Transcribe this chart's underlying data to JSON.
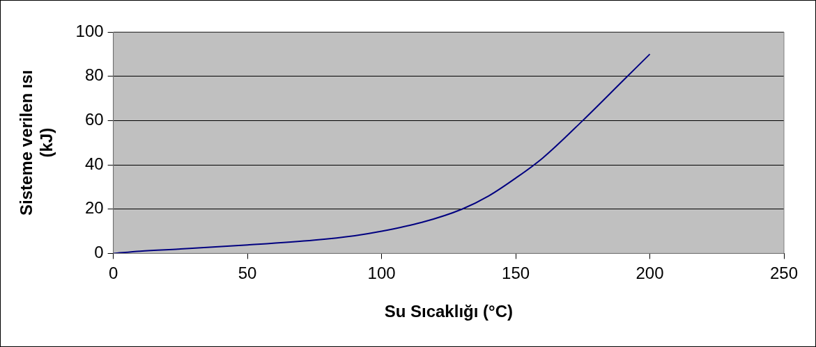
{
  "chart_data": {
    "type": "line",
    "xlabel": "Su Sıcaklığı (°C)",
    "ylabel": "Sisteme verilen ısı (kJ)",
    "series": [
      {
        "color": "#000080",
        "x": [
          0,
          10,
          25,
          50,
          75,
          90,
          100,
          115,
          130,
          140,
          150,
          160,
          175,
          190,
          200
        ],
        "values": [
          0,
          1,
          2,
          3.8,
          6,
          8,
          10,
          14,
          20,
          26,
          34,
          43,
          60,
          78,
          90
        ]
      }
    ],
    "xlim": [
      0,
      250
    ],
    "xticks": [
      0,
      50,
      100,
      150,
      200,
      250
    ],
    "ylim": [
      0,
      100
    ],
    "yticks": [
      0,
      20,
      40,
      60,
      80,
      100
    ],
    "grid": "y",
    "legend": false,
    "marker": "none",
    "line_style": "solid"
  }
}
